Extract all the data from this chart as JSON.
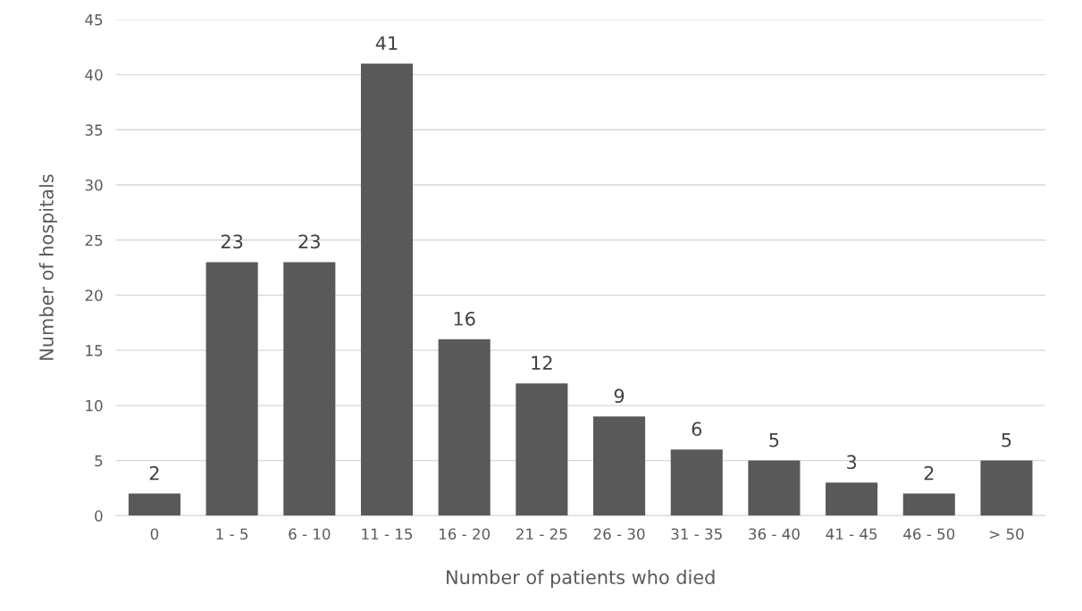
{
  "chart_data": {
    "type": "bar",
    "xlabel": "Number of patients who died",
    "ylabel": "Number of hospitals",
    "categories": [
      "0",
      "1 - 5",
      "6 - 10",
      "11 - 15",
      "16 - 20",
      "21 - 25",
      "26 - 30",
      "31 - 35",
      "36 - 40",
      "41 - 45",
      "46 - 50",
      "> 50"
    ],
    "values": [
      2,
      23,
      23,
      41,
      16,
      12,
      9,
      6,
      5,
      3,
      2,
      5
    ],
    "color": "#595959",
    "ylim": [
      0,
      45
    ],
    "yticks": [
      0,
      5,
      10,
      15,
      20,
      25,
      30,
      35,
      40,
      45
    ],
    "grid": "y",
    "data_labels": true
  }
}
